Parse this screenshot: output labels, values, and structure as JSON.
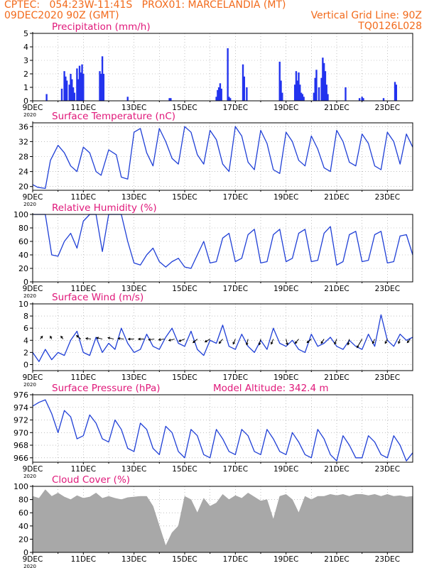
{
  "header": {
    "line1_left": "CPTEC:   054:23W-11:41S   PROX01: MARCELANDIA (MT)",
    "line2_left": "09DEC2020 90Z (GMT)",
    "line2_right": "Vertical Grid Line: 90Z",
    "line3_right": "TQ0126L028"
  },
  "colors": {
    "header": "#f26a1b",
    "title": "#e0187a",
    "series": "#1f3fd6",
    "cloud": "#a8a8a8",
    "grid": "#9a9a9a"
  },
  "x_tick_labels": [
    "9DEC",
    "11DEC",
    "13DEC",
    "15DEC",
    "17DEC",
    "19DEC",
    "21DEC",
    "23DEC"
  ],
  "x_tick_sublabel": "2020",
  "chart_data": [
    {
      "type": "bar",
      "title": "Precipitation (mm/h)",
      "x_range_days": [
        9,
        24
      ],
      "ylim": [
        0,
        5
      ],
      "yticks": [
        0,
        1,
        2,
        3,
        4,
        5
      ],
      "x": [
        9.55,
        10.15,
        10.25,
        10.3,
        10.35,
        10.45,
        10.5,
        10.55,
        10.6,
        10.65,
        10.75,
        10.8,
        10.85,
        10.9,
        10.95,
        11.0,
        11.65,
        11.7,
        11.75,
        11.8,
        12.75,
        14.4,
        14.45,
        16.25,
        16.3,
        16.35,
        16.4,
        16.45,
        16.7,
        16.75,
        16.8,
        17.3,
        17.35,
        17.45,
        18.75,
        18.8,
        18.85,
        19.35,
        19.4,
        19.45,
        19.5,
        19.55,
        19.6,
        19.65,
        19.7,
        20.1,
        20.15,
        20.2,
        20.3,
        20.4,
        20.45,
        20.5,
        20.55,
        20.6,
        20.65,
        21.35,
        21.9,
        22.0,
        22.05,
        22.85,
        23.3,
        23.35
      ],
      "values": [
        0.5,
        0.9,
        2.2,
        1.8,
        1.5,
        1.2,
        2.0,
        1.6,
        1.0,
        0.6,
        2.4,
        1.6,
        2.6,
        2.1,
        2.7,
        2.0,
        2.2,
        2.0,
        3.3,
        2.0,
        0.3,
        0.2,
        0.2,
        0.3,
        0.8,
        1.0,
        1.3,
        0.9,
        3.9,
        0.3,
        0.2,
        2.7,
        1.8,
        1.0,
        2.9,
        1.5,
        0.6,
        1.2,
        2.2,
        1.5,
        2.1,
        1.2,
        0.6,
        0.5,
        0.3,
        0.6,
        1.7,
        2.3,
        1.0,
        1.7,
        3.2,
        2.8,
        2.2,
        1.2,
        0.5,
        1.0,
        0.2,
        0.3,
        0.2,
        0.2,
        1.4,
        1.2
      ]
    },
    {
      "type": "line",
      "title": "Surface Temperature (nC)",
      "x_range_days": [
        9,
        24
      ],
      "ylim": [
        19,
        37
      ],
      "yticks": [
        20,
        24,
        28,
        32,
        36
      ],
      "x": [
        9.0,
        9.2,
        9.5,
        9.7,
        10.0,
        10.25,
        10.5,
        10.75,
        11.0,
        11.25,
        11.5,
        11.7,
        12.0,
        12.3,
        12.5,
        12.75,
        13.0,
        13.25,
        13.5,
        13.75,
        14.0,
        14.25,
        14.5,
        14.75,
        15.0,
        15.25,
        15.5,
        15.75,
        16.0,
        16.25,
        16.5,
        16.75,
        17.0,
        17.25,
        17.5,
        17.75,
        18.0,
        18.25,
        18.5,
        18.75,
        19.0,
        19.25,
        19.5,
        19.75,
        20.0,
        20.25,
        20.5,
        20.75,
        21.0,
        21.25,
        21.5,
        21.75,
        22.0,
        22.25,
        22.5,
        22.75,
        23.0,
        23.25,
        23.5,
        23.75,
        24.0
      ],
      "values": [
        20.5,
        19.8,
        19.5,
        27.0,
        31.0,
        29.0,
        25.5,
        24.0,
        30.5,
        29.0,
        24.0,
        23.0,
        29.8,
        28.5,
        22.5,
        22.0,
        34.5,
        35.5,
        29.0,
        25.5,
        35.5,
        32.0,
        27.5,
        26.0,
        36.0,
        34.5,
        28.5,
        26.0,
        35.0,
        32.5,
        26.0,
        24.0,
        36.0,
        33.5,
        26.5,
        24.5,
        35.0,
        31.5,
        24.5,
        23.5,
        34.5,
        32.0,
        27.0,
        25.5,
        33.5,
        30.0,
        25.0,
        24.0,
        35.0,
        32.0,
        26.5,
        25.5,
        34.0,
        31.5,
        25.5,
        24.5,
        34.5,
        32.0,
        26.0,
        34.0,
        30.5
      ]
    },
    {
      "type": "line",
      "title": "Relative Humidity (%)",
      "x_range_days": [
        9,
        24
      ],
      "ylim": [
        0,
        100
      ],
      "yticks": [
        0,
        20,
        40,
        60,
        80,
        100
      ],
      "x": [
        9.0,
        9.25,
        9.5,
        9.75,
        10.0,
        10.25,
        10.5,
        10.75,
        11.0,
        11.25,
        11.5,
        11.75,
        12.0,
        12.25,
        12.5,
        12.75,
        13.0,
        13.25,
        13.5,
        13.75,
        14.0,
        14.25,
        14.5,
        14.75,
        15.0,
        15.25,
        15.5,
        15.75,
        16.0,
        16.25,
        16.5,
        16.75,
        17.0,
        17.25,
        17.5,
        17.75,
        18.0,
        18.25,
        18.5,
        18.75,
        19.0,
        19.25,
        19.5,
        19.75,
        20.0,
        20.25,
        20.5,
        20.75,
        21.0,
        21.25,
        21.5,
        21.75,
        22.0,
        22.25,
        22.5,
        22.75,
        23.0,
        23.25,
        23.5,
        23.75,
        24.0
      ],
      "values": [
        100,
        100,
        100,
        40,
        38,
        60,
        72,
        50,
        90,
        100,
        100,
        45,
        100,
        100,
        100,
        60,
        28,
        25,
        40,
        50,
        30,
        22,
        30,
        35,
        22,
        20,
        40,
        60,
        28,
        30,
        65,
        72,
        30,
        35,
        70,
        78,
        28,
        30,
        70,
        78,
        30,
        35,
        72,
        78,
        30,
        32,
        72,
        82,
        25,
        30,
        70,
        75,
        30,
        32,
        70,
        75,
        28,
        30,
        68,
        70,
        40
      ]
    },
    {
      "type": "line",
      "title": "Surface Wind (m/s)",
      "x_range_days": [
        9,
        24
      ],
      "ylim": [
        -1,
        10
      ],
      "yticks": [
        0,
        2,
        4,
        6,
        8,
        10
      ],
      "x": [
        9.0,
        9.25,
        9.5,
        9.75,
        10.0,
        10.25,
        10.5,
        10.75,
        11.0,
        11.25,
        11.5,
        11.75,
        12.0,
        12.25,
        12.5,
        12.75,
        13.0,
        13.25,
        13.5,
        13.75,
        14.0,
        14.25,
        14.5,
        14.75,
        15.0,
        15.25,
        15.5,
        15.75,
        16.0,
        16.25,
        16.5,
        16.75,
        17.0,
        17.25,
        17.5,
        17.75,
        18.0,
        18.25,
        18.5,
        18.75,
        19.0,
        19.25,
        19.5,
        19.75,
        20.0,
        20.25,
        20.5,
        20.75,
        21.0,
        21.25,
        21.5,
        21.75,
        22.0,
        22.25,
        22.5,
        22.75,
        23.0,
        23.25,
        23.5,
        23.75,
        24.0
      ],
      "values": [
        2.0,
        0.5,
        2.5,
        0.8,
        2.0,
        1.5,
        4.0,
        5.5,
        2.0,
        1.5,
        4.5,
        2.0,
        3.5,
        2.5,
        6.0,
        3.5,
        2.0,
        2.5,
        5.0,
        3.0,
        2.5,
        4.5,
        6.0,
        3.5,
        3.0,
        5.5,
        2.5,
        1.5,
        4.0,
        3.5,
        6.5,
        3.0,
        2.5,
        5.0,
        3.0,
        2.0,
        4.0,
        2.5,
        6.0,
        3.5,
        3.0,
        4.0,
        2.5,
        2.0,
        5.0,
        3.0,
        3.5,
        4.5,
        3.0,
        2.5,
        4.0,
        3.0,
        2.5,
        5.0,
        3.0,
        8.2,
        4.0,
        3.0,
        5.0,
        4.0,
        4.5
      ],
      "wind_barbs": [
        {
          "x": 9.3,
          "dx": 3,
          "dy": -4
        },
        {
          "x": 9.75,
          "dx": -2,
          "dy": -4
        },
        {
          "x": 10.2,
          "dx": -3,
          "dy": -4
        },
        {
          "x": 10.9,
          "dx": -6,
          "dy": -5
        },
        {
          "x": 11.3,
          "dx": -7,
          "dy": -1
        },
        {
          "x": 11.75,
          "dx": -8,
          "dy": -2
        },
        {
          "x": 12.2,
          "dx": -8,
          "dy": -2
        },
        {
          "x": 12.6,
          "dx": -8,
          "dy": -1
        },
        {
          "x": 13.0,
          "dx": -8,
          "dy": 0
        },
        {
          "x": 13.4,
          "dx": -8,
          "dy": 0
        },
        {
          "x": 13.8,
          "dx": -8,
          "dy": 1
        },
        {
          "x": 14.2,
          "dx": -8,
          "dy": 1
        },
        {
          "x": 14.6,
          "dx": -8,
          "dy": 2
        },
        {
          "x": 15.0,
          "dx": -8,
          "dy": 3
        },
        {
          "x": 15.5,
          "dx": -6,
          "dy": 5
        },
        {
          "x": 16.0,
          "dx": -7,
          "dy": 4
        },
        {
          "x": 16.5,
          "dx": -5,
          "dy": 6
        },
        {
          "x": 17.0,
          "dx": -3,
          "dy": 7
        },
        {
          "x": 17.5,
          "dx": -2,
          "dy": 8
        },
        {
          "x": 18.0,
          "dx": -2,
          "dy": 8
        },
        {
          "x": 18.5,
          "dx": -3,
          "dy": 7
        },
        {
          "x": 19.0,
          "dx": 2,
          "dy": 8
        },
        {
          "x": 19.5,
          "dx": -5,
          "dy": 6
        },
        {
          "x": 20.0,
          "dx": -6,
          "dy": 5
        },
        {
          "x": 20.5,
          "dx": -4,
          "dy": 6
        },
        {
          "x": 21.0,
          "dx": -3,
          "dy": 7
        },
        {
          "x": 21.5,
          "dx": -2,
          "dy": 8
        },
        {
          "x": 22.0,
          "dx": -7,
          "dy": 12
        },
        {
          "x": 22.5,
          "dx": -3,
          "dy": 6
        },
        {
          "x": 23.0,
          "dx": -3,
          "dy": 6
        },
        {
          "x": 23.5,
          "dx": -2,
          "dy": 6
        },
        {
          "x": 23.9,
          "dx": -4,
          "dy": 5
        }
      ]
    },
    {
      "type": "line",
      "title": "Surface Pressure (hPa)",
      "annotation": "Model Altitude: 342.4 m",
      "x_range_days": [
        9,
        24
      ],
      "ylim": [
        965.3,
        976
      ],
      "yticks": [
        966,
        968,
        970,
        972,
        974,
        976
      ],
      "x": [
        9.0,
        9.25,
        9.5,
        9.75,
        10.0,
        10.25,
        10.5,
        10.75,
        11.0,
        11.25,
        11.5,
        11.75,
        12.0,
        12.25,
        12.5,
        12.75,
        13.0,
        13.25,
        13.5,
        13.75,
        14.0,
        14.25,
        14.5,
        14.75,
        15.0,
        15.25,
        15.5,
        15.75,
        16.0,
        16.25,
        16.5,
        16.75,
        17.0,
        17.25,
        17.5,
        17.75,
        18.0,
        18.25,
        18.5,
        18.75,
        19.0,
        19.25,
        19.5,
        19.75,
        20.0,
        20.25,
        20.5,
        20.75,
        21.0,
        21.25,
        21.5,
        21.75,
        22.0,
        22.25,
        22.5,
        22.75,
        23.0,
        23.25,
        23.5,
        23.75,
        24.0
      ],
      "values": [
        974.2,
        974.8,
        975.2,
        973.0,
        970.0,
        973.5,
        972.5,
        969.0,
        969.5,
        972.8,
        971.5,
        969.0,
        968.5,
        972.0,
        970.5,
        967.5,
        967.0,
        971.5,
        970.5,
        967.5,
        966.5,
        971.0,
        970.0,
        967.0,
        966.0,
        970.5,
        969.5,
        966.5,
        966.0,
        970.5,
        969.0,
        967.0,
        966.5,
        970.5,
        969.5,
        967.0,
        966.5,
        970.5,
        969.0,
        967.0,
        966.5,
        970.0,
        968.5,
        966.5,
        966.0,
        970.5,
        969.0,
        966.5,
        965.5,
        969.5,
        968.0,
        966.0,
        966.0,
        969.5,
        968.5,
        966.5,
        966.0,
        969.5,
        968.0,
        965.5,
        966.8
      ]
    },
    {
      "type": "area",
      "title": "Cloud Cover (%)",
      "x_range_days": [
        9,
        24
      ],
      "ylim": [
        0,
        100
      ],
      "yticks": [
        0,
        20,
        40,
        60,
        80,
        100
      ],
      "x": [
        9.0,
        9.25,
        9.5,
        9.75,
        10.0,
        10.25,
        10.5,
        10.75,
        11.0,
        11.25,
        11.5,
        11.75,
        12.0,
        12.25,
        12.5,
        12.75,
        13.0,
        13.25,
        13.5,
        13.75,
        14.0,
        14.25,
        14.5,
        14.75,
        15.0,
        15.25,
        15.5,
        15.75,
        16.0,
        16.25,
        16.5,
        16.75,
        17.0,
        17.25,
        17.5,
        17.75,
        18.0,
        18.25,
        18.5,
        18.75,
        19.0,
        19.25,
        19.5,
        19.75,
        20.0,
        20.25,
        20.5,
        20.75,
        21.0,
        21.25,
        21.5,
        21.75,
        22.0,
        22.25,
        22.5,
        22.75,
        23.0,
        23.25,
        23.5,
        23.75,
        24.0
      ],
      "values": [
        85,
        82,
        95,
        85,
        90,
        84,
        80,
        86,
        82,
        84,
        90,
        82,
        85,
        82,
        80,
        83,
        84,
        85,
        85,
        70,
        40,
        10,
        30,
        40,
        85,
        80,
        60,
        82,
        70,
        75,
        88,
        80,
        86,
        82,
        90,
        84,
        78,
        80,
        50,
        85,
        88,
        80,
        60,
        85,
        80,
        85,
        85,
        88,
        86,
        88,
        85,
        88,
        88,
        86,
        88,
        85,
        88,
        85,
        86,
        84,
        85
      ]
    }
  ]
}
